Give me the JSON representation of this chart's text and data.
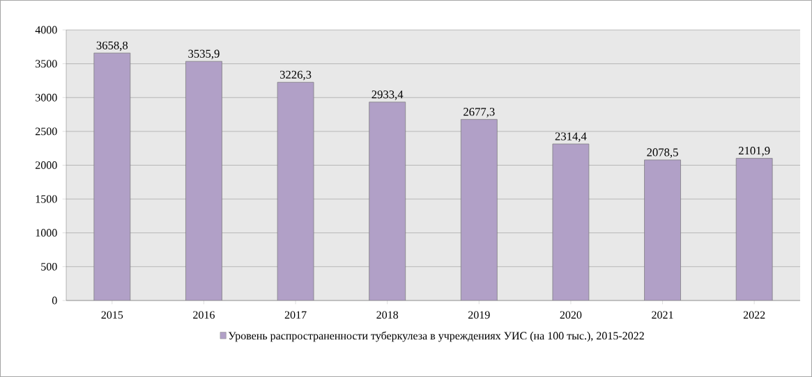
{
  "chart_data": {
    "type": "bar",
    "categories": [
      "2015",
      "2016",
      "2017",
      "2018",
      "2019",
      "2020",
      "2021",
      "2022"
    ],
    "series": [
      {
        "name": "Уровень распространенности туберкулеза в учреждениях УИС (на 100 тыс.), 2015-2022",
        "color": "#b1a0c7",
        "values": [
          3658.8,
          3535.9,
          3226.3,
          2933.4,
          2677.3,
          2314.4,
          2078.5,
          2101.9
        ],
        "value_labels": [
          "3658,8",
          "3535,9",
          "3226,3",
          "2933,4",
          "2677,3",
          "2314,4",
          "2078,5",
          "2101,9"
        ]
      }
    ],
    "ylim": [
      0,
      4000
    ],
    "yticks": [
      0,
      500,
      1000,
      1500,
      2000,
      2500,
      3000,
      3500,
      4000
    ],
    "grid": "y",
    "legend": "bottom"
  }
}
